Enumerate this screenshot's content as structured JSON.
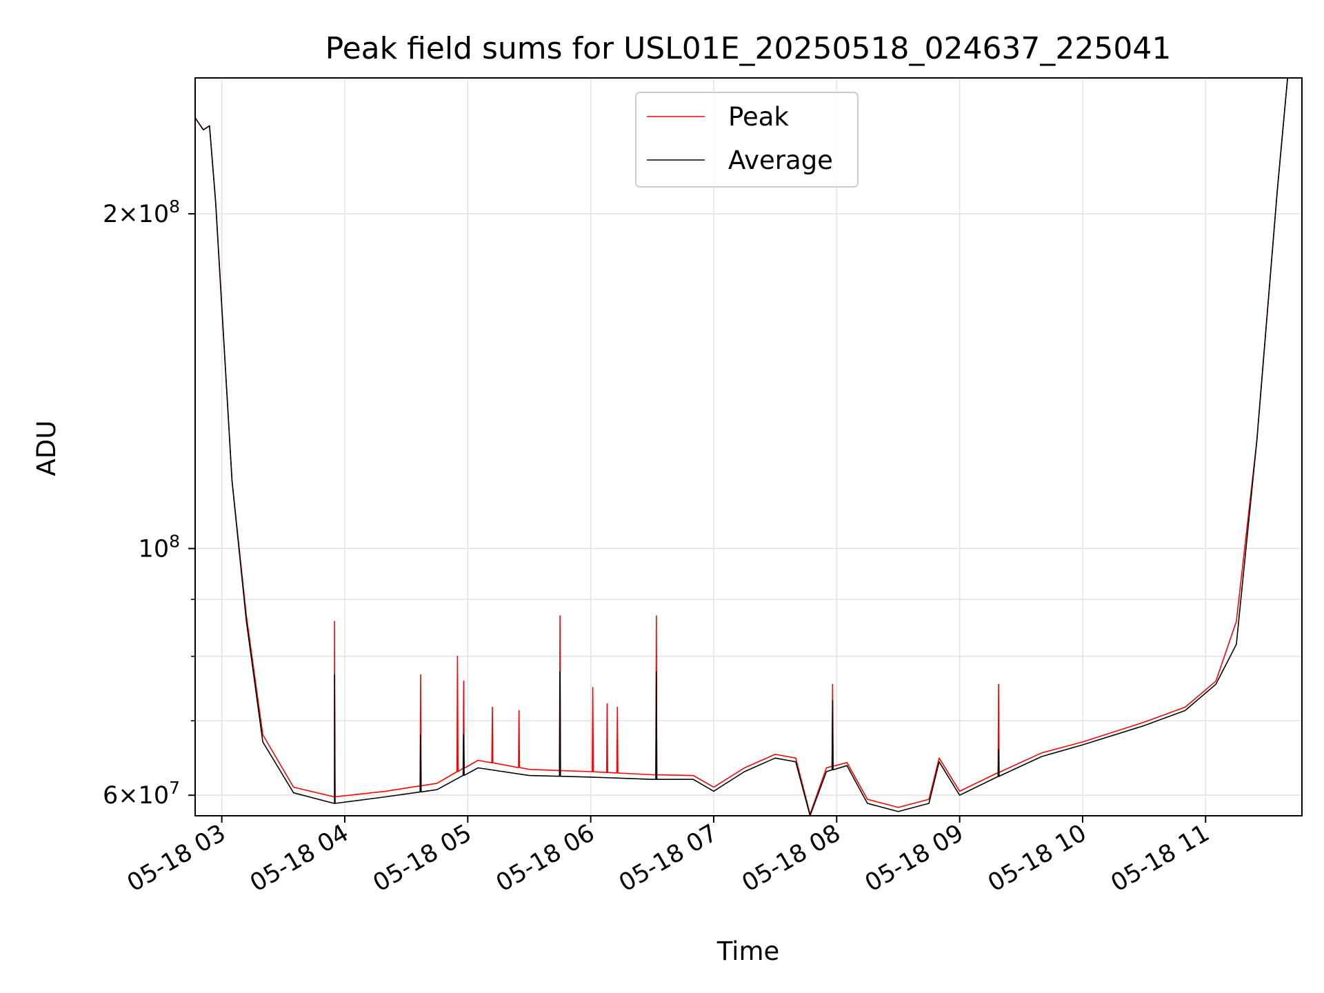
{
  "chart_data": {
    "type": "line",
    "title": "Peak field sums for USL01E_20250518_024637_225041",
    "xlabel": "Time",
    "ylabel": "ADU",
    "yscale": "log",
    "xlim": [
      "05-18 02:47",
      "05-18 11:47"
    ],
    "ylim": [
      57500000,
      265000000
    ],
    "x_ticks": [
      "05-18 03",
      "05-18 04",
      "05-18 05",
      "05-18 06",
      "05-18 07",
      "05-18 08",
      "05-18 09",
      "05-18 10",
      "05-18 11"
    ],
    "y_ticks": [
      {
        "value": 60000000,
        "mantissa": "6",
        "exponent": "7"
      },
      {
        "value": 100000000,
        "mantissa": "",
        "exponent": "8"
      },
      {
        "value": 200000000,
        "mantissa": "2",
        "exponent": "8"
      }
    ],
    "y_minor_ticks": [
      70000000,
      80000000,
      90000000
    ],
    "grid": true,
    "legend_position": "upper center",
    "series": [
      {
        "name": "Peak",
        "color": "#ff0000",
        "points": [
          [
            "05-18 02:47",
            244000000
          ],
          [
            "05-18 02:51",
            238000000
          ],
          [
            "05-18 02:54",
            240000000
          ],
          [
            "05-18 02:57",
            205000000
          ],
          [
            "05-18 03:05",
            115000000
          ],
          [
            "05-18 03:12",
            87000000
          ],
          [
            "05-18 03:20",
            68000000
          ],
          [
            "05-18 03:35",
            61000000
          ],
          [
            "05-18 03:55",
            59800000
          ],
          [
            "05-18 04:20",
            60500000
          ],
          [
            "05-18 04:45",
            61500000
          ],
          [
            "05-18 05:05",
            64500000
          ],
          [
            "05-18 05:30",
            63300000
          ],
          [
            "05-18 06:00",
            63000000
          ],
          [
            "05-18 06:30",
            62600000
          ],
          [
            "05-18 06:50",
            62500000
          ],
          [
            "05-18 07:00",
            61000000
          ],
          [
            "05-18 07:15",
            63500000
          ],
          [
            "05-18 07:30",
            65300000
          ],
          [
            "05-18 07:40",
            64800000
          ],
          [
            "05-18 07:47",
            57700000
          ],
          [
            "05-18 07:55",
            63500000
          ],
          [
            "05-18 08:05",
            64200000
          ],
          [
            "05-18 08:15",
            59500000
          ],
          [
            "05-18 08:30",
            58500000
          ],
          [
            "05-18 08:45",
            59500000
          ],
          [
            "05-18 08:50",
            64800000
          ],
          [
            "05-18 09:00",
            60500000
          ],
          [
            "05-18 09:20",
            63000000
          ],
          [
            "05-18 09:40",
            65500000
          ],
          [
            "05-18 10:00",
            67000000
          ],
          [
            "05-18 10:30",
            69800000
          ],
          [
            "05-18 10:50",
            72000000
          ],
          [
            "05-18 11:05",
            76000000
          ],
          [
            "05-18 11:15",
            86000000
          ],
          [
            "05-18 11:25",
            125000000
          ],
          [
            "05-18 11:35",
            210000000
          ],
          [
            "05-18 11:40",
            265000000
          ]
        ],
        "spikes": [
          [
            "05-18 03:55",
            86000000
          ],
          [
            "05-18 04:37",
            77000000
          ],
          [
            "05-18 04:55",
            80000000
          ],
          [
            "05-18 04:58",
            76000000
          ],
          [
            "05-18 05:12",
            72000000
          ],
          [
            "05-18 05:25",
            71500000
          ],
          [
            "05-18 05:45",
            87000000
          ],
          [
            "05-18 06:01",
            75000000
          ],
          [
            "05-18 06:08",
            72500000
          ],
          [
            "05-18 06:13",
            72000000
          ],
          [
            "05-18 06:32",
            87000000
          ],
          [
            "05-18 07:58",
            75500000
          ],
          [
            "05-18 09:19",
            75500000
          ]
        ]
      },
      {
        "name": "Average",
        "color": "#000000",
        "points": [
          [
            "05-18 02:47",
            244000000
          ],
          [
            "05-18 02:51",
            238000000
          ],
          [
            "05-18 02:54",
            240000000
          ],
          [
            "05-18 02:57",
            205000000
          ],
          [
            "05-18 03:05",
            115000000
          ],
          [
            "05-18 03:12",
            86000000
          ],
          [
            "05-18 03:20",
            67000000
          ],
          [
            "05-18 03:35",
            60300000
          ],
          [
            "05-18 03:55",
            59000000
          ],
          [
            "05-18 04:20",
            59800000
          ],
          [
            "05-18 04:45",
            60700000
          ],
          [
            "05-18 05:05",
            63500000
          ],
          [
            "05-18 05:30",
            62500000
          ],
          [
            "05-18 06:00",
            62300000
          ],
          [
            "05-18 06:30",
            62000000
          ],
          [
            "05-18 06:50",
            62000000
          ],
          [
            "05-18 07:00",
            60500000
          ],
          [
            "05-18 07:15",
            63000000
          ],
          [
            "05-18 07:30",
            64800000
          ],
          [
            "05-18 07:40",
            64300000
          ],
          [
            "05-18 07:47",
            57500000
          ],
          [
            "05-18 07:55",
            63000000
          ],
          [
            "05-18 08:05",
            63800000
          ],
          [
            "05-18 08:15",
            59000000
          ],
          [
            "05-18 08:30",
            58000000
          ],
          [
            "05-18 08:45",
            59000000
          ],
          [
            "05-18 08:50",
            64300000
          ],
          [
            "05-18 09:00",
            60000000
          ],
          [
            "05-18 09:20",
            62500000
          ],
          [
            "05-18 09:40",
            65000000
          ],
          [
            "05-18 10:00",
            66600000
          ],
          [
            "05-18 10:30",
            69300000
          ],
          [
            "05-18 10:50",
            71500000
          ],
          [
            "05-18 11:05",
            75500000
          ],
          [
            "05-18 11:15",
            82000000
          ],
          [
            "05-18 11:25",
            125000000
          ],
          [
            "05-18 11:35",
            210000000
          ],
          [
            "05-18 11:40",
            265000000
          ]
        ],
        "spikes": [
          [
            "05-18 03:55",
            77000000
          ],
          [
            "05-18 04:37",
            68000000
          ],
          [
            "05-18 04:58",
            68000000
          ],
          [
            "05-18 05:45",
            77500000
          ],
          [
            "05-18 06:32",
            77500000
          ],
          [
            "05-18 07:58",
            73000000
          ],
          [
            "05-18 09:19",
            66000000
          ]
        ]
      }
    ]
  }
}
